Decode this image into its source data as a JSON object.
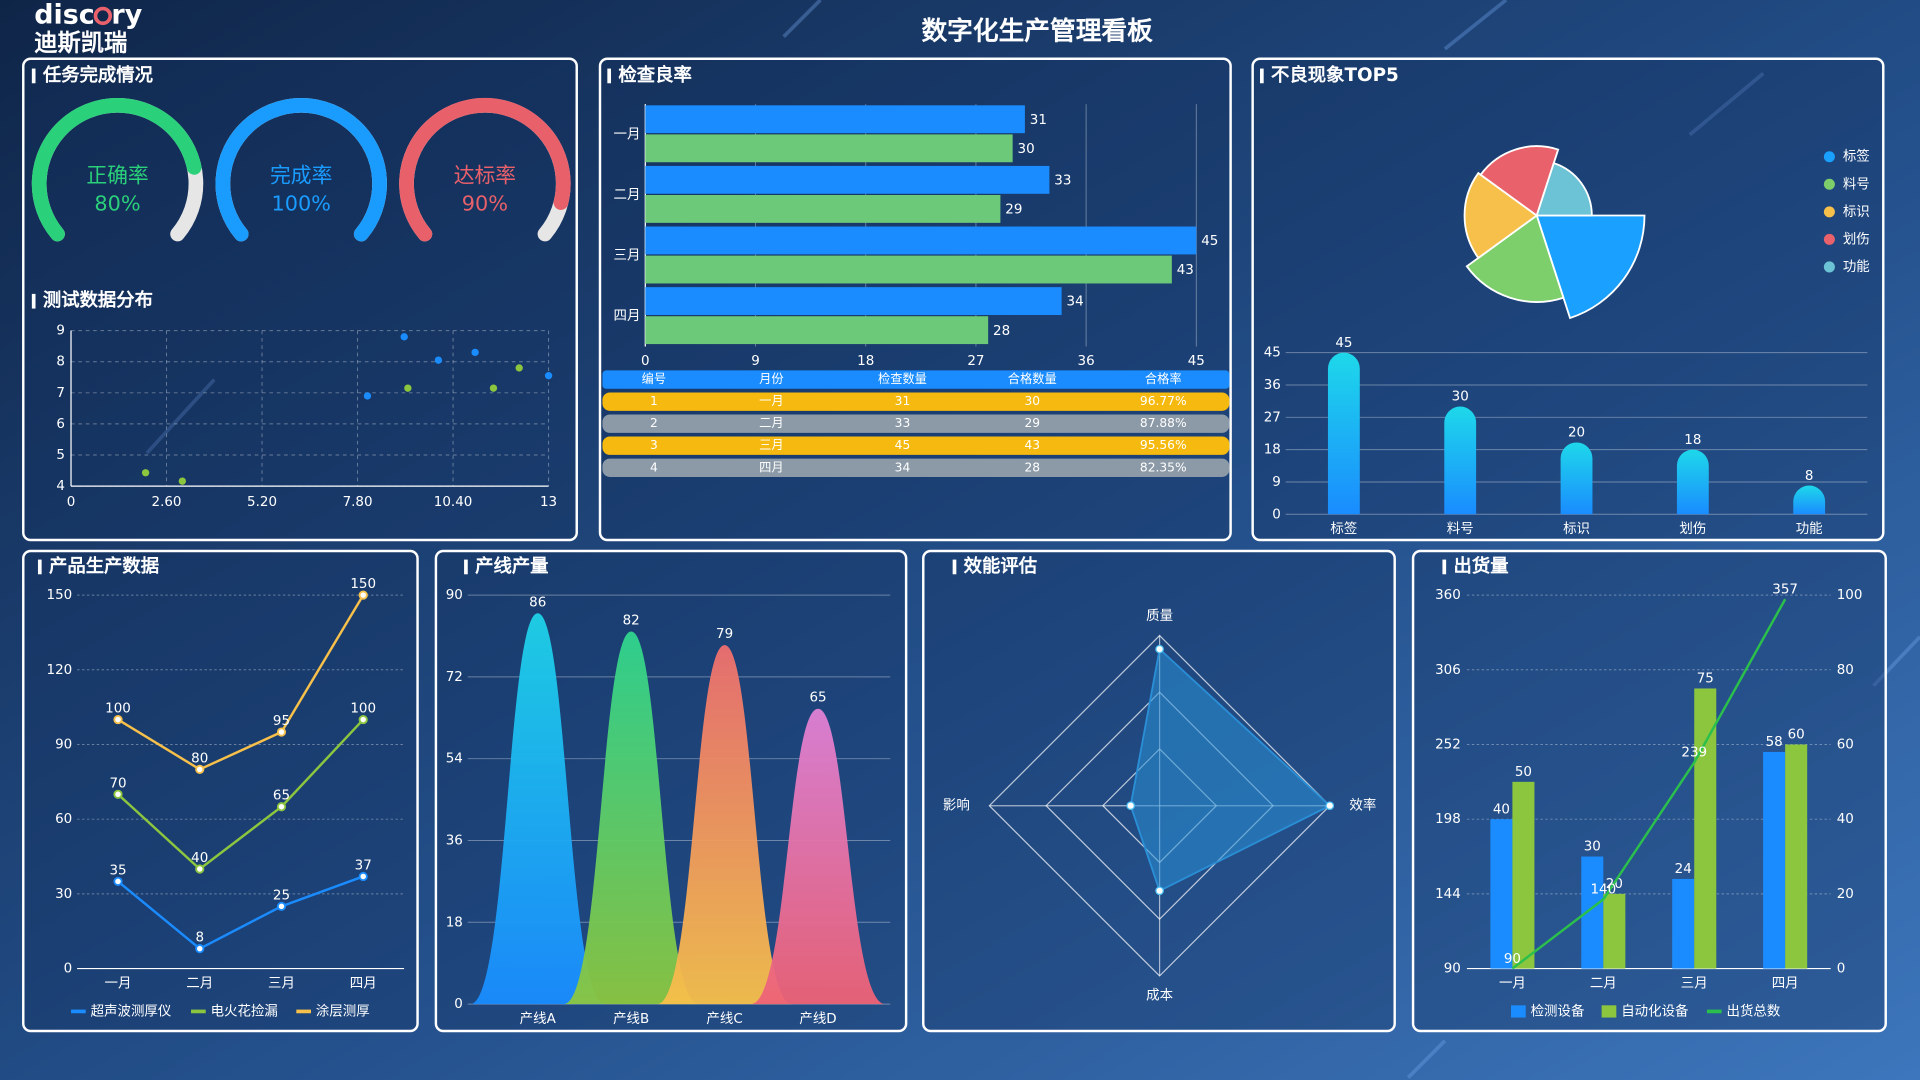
{
  "title": "数字化生产管理看板",
  "logo": {
    "left": "disc",
    "right": "ry",
    "subtitle": "迪斯凯瑞"
  },
  "chart_data": [
    {
      "type": "gauge",
      "title": "任务完成情况",
      "categories": [
        "正确率",
        "完成率",
        "达标率"
      ],
      "values": [
        80,
        100,
        90
      ],
      "value_labels": [
        "80%",
        "100%",
        "90%"
      ],
      "colors": [
        "#2ad07a",
        "#1a9cff",
        "#e8606a"
      ],
      "range": [
        0,
        100
      ]
    },
    {
      "type": "scatter",
      "title": "测试数据分布",
      "series": [
        {
          "color": "#1a8cff",
          "x": [
            8.07,
            9.07,
            10,
            11,
            13
          ],
          "values": [
            6.9,
            8.8,
            8.05,
            8.3,
            7.55
          ]
        },
        {
          "color": "#8cc63f",
          "x": [
            2.03,
            3.03,
            9.17,
            11.5,
            12.2
          ],
          "values": [
            4.43,
            4.16,
            7.15,
            7.15,
            7.8
          ]
        }
      ],
      "xlim": [
        0,
        13
      ],
      "xticks": [
        0,
        {
          "value": 2.6,
          "label": "2.60"
        },
        {
          "value": 5.2,
          "label": "5.20"
        },
        {
          "value": 7.8,
          "label": "7.80"
        },
        {
          "value": 10.4,
          "label": "10.40"
        },
        13
      ],
      "ylim": [
        4,
        9
      ],
      "yticks": [
        4,
        5,
        6,
        7,
        8,
        9
      ],
      "grid": true
    },
    {
      "type": "hbar",
      "title": "检查良率",
      "categories": [
        "一月",
        "二月",
        "三月",
        "四月"
      ],
      "series": [
        {
          "color": "#1a8cff",
          "values": [
            31,
            33,
            45,
            34
          ]
        },
        {
          "color": "#6cc97a",
          "values": [
            30,
            29,
            43,
            28
          ]
        }
      ],
      "xlim": [
        0,
        45
      ],
      "xticks": [
        0,
        9,
        18,
        27,
        36,
        45
      ],
      "grid": true
    },
    {
      "type": "table",
      "columns": [
        "编号",
        "月份",
        "检查数量",
        "合格数量",
        "合格率"
      ],
      "rows": [
        [
          1,
          "一月",
          31,
          30,
          "96.77%"
        ],
        [
          2,
          "二月",
          33,
          29,
          "87.88%"
        ],
        [
          3,
          "三月",
          45,
          43,
          "95.56%"
        ],
        [
          4,
          "四月",
          34,
          28,
          "82.35%"
        ]
      ],
      "row_colors": [
        "#f5b90f",
        "#8c9aa8"
      ],
      "header_color": "#1a8cff"
    },
    {
      "type": "rose",
      "title": "不良现象TOP5",
      "categories": [
        "标签",
        "料号",
        "标识",
        "划伤",
        "功能"
      ],
      "values": [
        45,
        30,
        20,
        18,
        8
      ],
      "colors": [
        "#1aa0ff",
        "#7ccf6a",
        "#f7c04a",
        "#e8616b",
        "#6cc3d5"
      ],
      "legend": "right"
    },
    {
      "type": "bar",
      "categories": [
        "标签",
        "料号",
        "标识",
        "划伤",
        "功能"
      ],
      "values": [
        45,
        30,
        20,
        18,
        8
      ],
      "color": "#1a8cff",
      "ylim": [
        0,
        45
      ],
      "yticks": [
        0,
        9,
        18,
        27,
        36,
        45
      ],
      "grid": true
    },
    {
      "type": "line",
      "title": "产品生产数据",
      "categories": [
        "一月",
        "二月",
        "三月",
        "四月"
      ],
      "series": [
        {
          "name": "超声波测厚仪",
          "color": "#1a8cff",
          "values": [
            35,
            8,
            25,
            37
          ]
        },
        {
          "name": "电火花捡漏",
          "color": "#8cc63f",
          "values": [
            70,
            40,
            65,
            100
          ]
        },
        {
          "name": "涂层测厚",
          "color": "#f7c04a",
          "values": [
            100,
            80,
            95,
            150
          ]
        }
      ],
      "ylim": [
        0,
        150
      ],
      "yticks": [
        0,
        30,
        60,
        90,
        120,
        150
      ],
      "grid": true,
      "legend": "bottom"
    },
    {
      "type": "peak",
      "title": "产线产量",
      "categories": [
        "产线A",
        "产线B",
        "产线C",
        "产线D"
      ],
      "values": [
        86,
        82,
        79,
        65
      ],
      "colors": [
        [
          "#1ed2e8",
          "#1a8cff"
        ],
        [
          "#2fd58f",
          "#8cc63f"
        ],
        [
          "#ee6f6f",
          "#f7c04a"
        ],
        [
          "#e081d6",
          "#ee6275"
        ]
      ],
      "ylim": [
        0,
        90
      ],
      "yticks": [
        0,
        18,
        36,
        54,
        72,
        90
      ],
      "grid": true
    },
    {
      "type": "radar",
      "title": "效能评估",
      "indicators": [
        "质量",
        "效率",
        "成本",
        "影响"
      ],
      "values": [
        92,
        100,
        50,
        17
      ],
      "rlim": [
        0,
        100
      ],
      "color": "#2a8fd6"
    },
    {
      "type": "combo",
      "title": "出货量",
      "categories": [
        "一月",
        "二月",
        "三月",
        "四月"
      ],
      "series": [
        {
          "name": "检测设备",
          "type": "bar",
          "axis": "y2",
          "color": "#1a8cff",
          "values": [
            40,
            30,
            24,
            58
          ]
        },
        {
          "name": "自动化设备",
          "type": "bar",
          "axis": "y2",
          "color": "#8cc63f",
          "values": [
            50,
            20,
            75,
            60
          ]
        },
        {
          "name": "出货总数",
          "type": "line",
          "color": "#2ac04b",
          "values": [
            90,
            140,
            239,
            357
          ]
        }
      ],
      "ylim": [
        90,
        360
      ],
      "yticks": [
        90,
        144,
        198,
        252,
        306,
        360
      ],
      "y2lim": [
        0,
        100
      ],
      "y2ticks": [
        0,
        20,
        40,
        60,
        80,
        100
      ],
      "grid": true,
      "legend": "bottom"
    }
  ]
}
